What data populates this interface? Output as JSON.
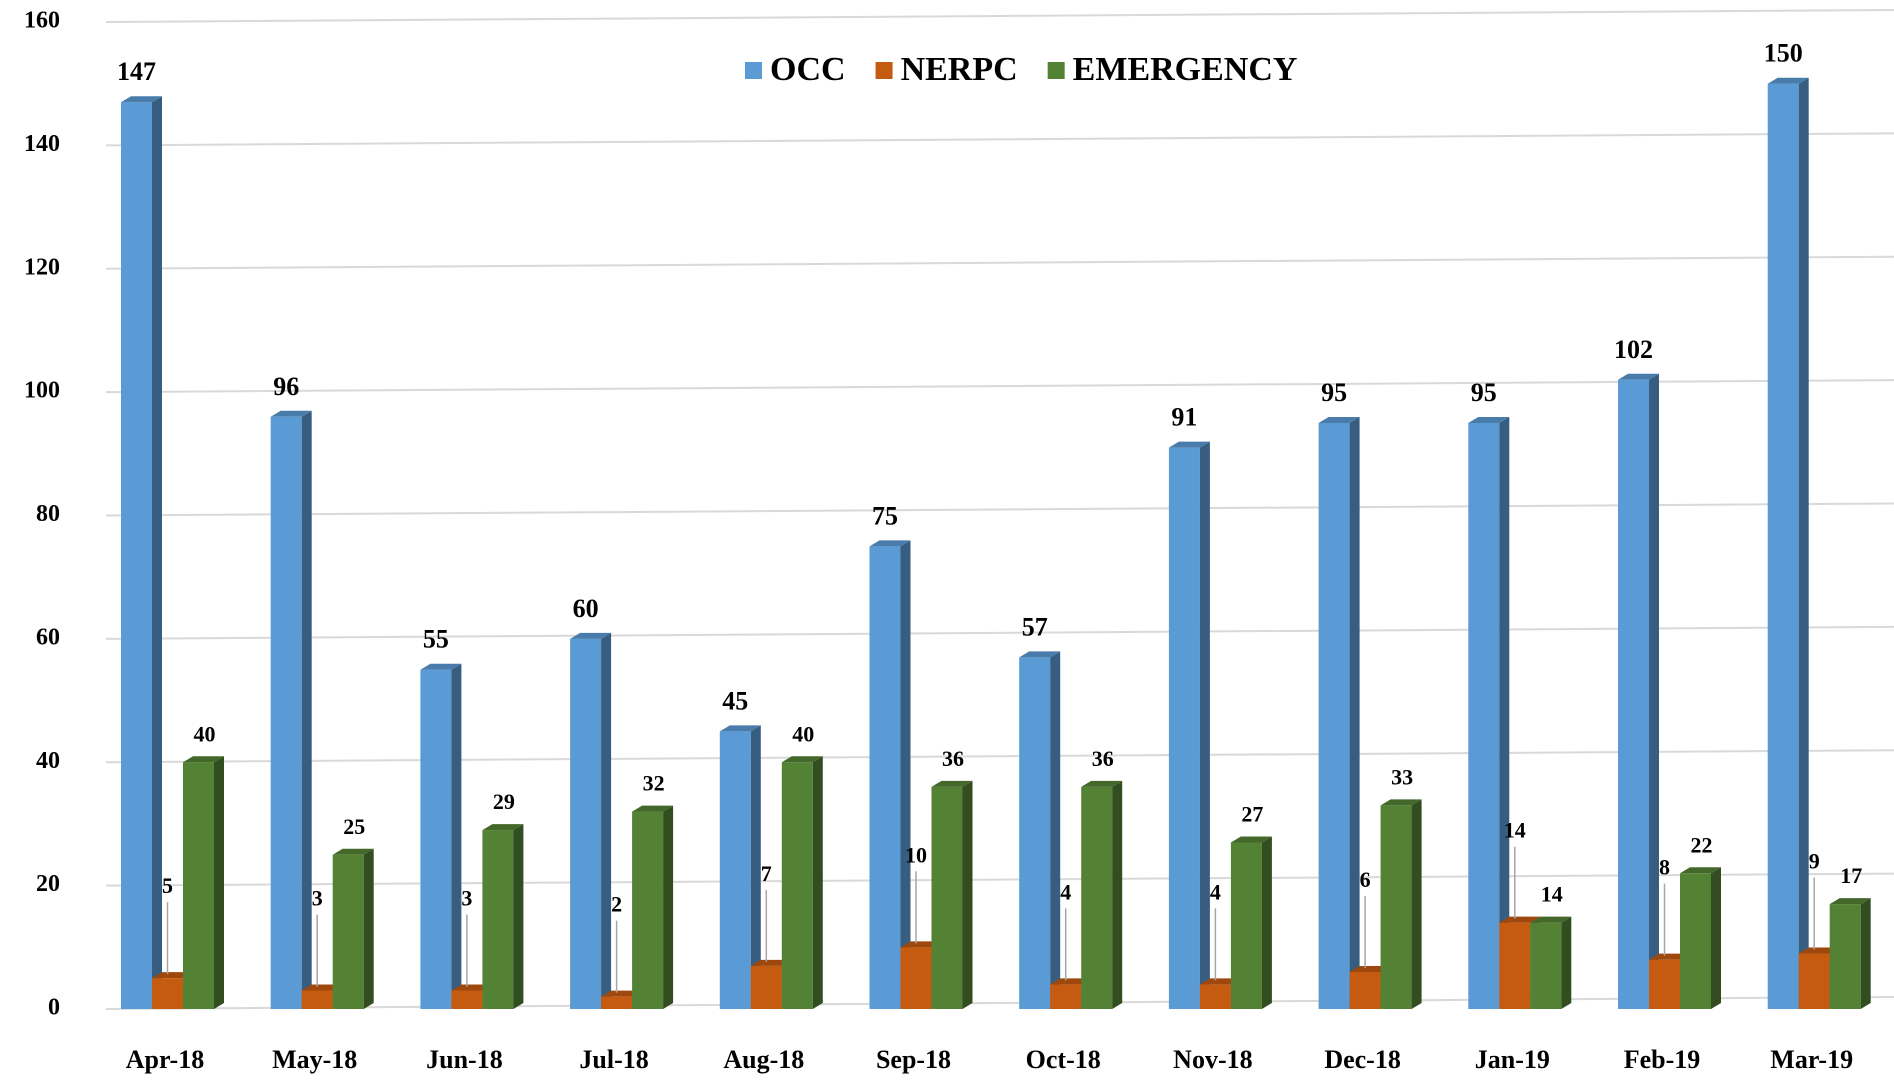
{
  "chart_data": {
    "type": "bar3d",
    "categories": [
      "Apr-18",
      "May-18",
      "Jun-18",
      "Jul-18",
      "Aug-18",
      "Sep-18",
      "Oct-18",
      "Nov-18",
      "Dec-18",
      "Jan-19",
      "Feb-19",
      "Mar-19"
    ],
    "series": [
      {
        "name": "OCC",
        "color": "#5b9bd5",
        "values": [
          147,
          96,
          55,
          60,
          45,
          75,
          57,
          91,
          95,
          95,
          102,
          150
        ]
      },
      {
        "name": "NERPC",
        "color": "#c55a11",
        "values": [
          5,
          3,
          3,
          2,
          7,
          10,
          4,
          4,
          6,
          14,
          8,
          9
        ]
      },
      {
        "name": "EMERGENCY",
        "color": "#548235",
        "values": [
          40,
          25,
          29,
          32,
          40,
          36,
          36,
          27,
          33,
          14,
          22,
          17
        ]
      }
    ],
    "ylim": [
      0,
      160
    ],
    "yticks": [
      0,
      20,
      40,
      60,
      80,
      100,
      120,
      140,
      160
    ],
    "grid": true,
    "legend": "top"
  }
}
